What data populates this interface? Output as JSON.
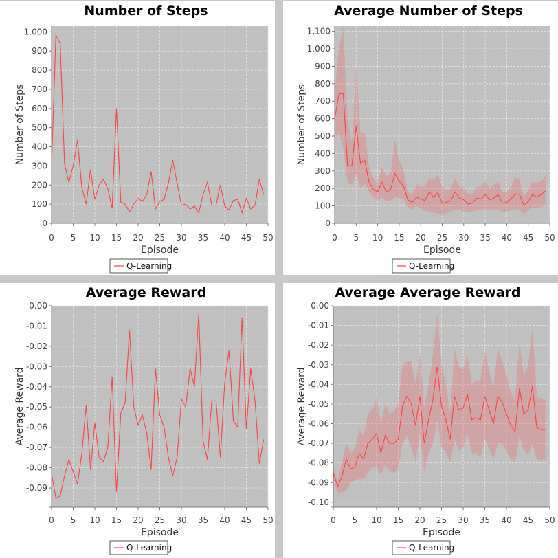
{
  "chart_data": [
    {
      "type": "line",
      "title": "Number of Steps",
      "xlabel": "Episode",
      "ylabel": "Number of Steps",
      "xlim": [
        0,
        50
      ],
      "ylim": [
        0,
        1030
      ],
      "xticks": [
        0,
        5,
        10,
        15,
        20,
        25,
        30,
        35,
        40,
        45,
        50
      ],
      "yticks": [
        0,
        100,
        200,
        300,
        400,
        500,
        600,
        700,
        800,
        900,
        1000
      ],
      "ytick_labels": [
        "0",
        "100",
        "200",
        "300",
        "400",
        "500",
        "600",
        "700",
        "800",
        "900",
        "1,000"
      ],
      "grid": true,
      "legend_position": "bottom-center",
      "series": [
        {
          "name": "Q-Learning",
          "color": "#ff4040",
          "x": [
            0,
            1,
            2,
            3,
            4,
            5,
            6,
            7,
            8,
            9,
            10,
            11,
            12,
            13,
            14,
            15,
            16,
            17,
            18,
            19,
            20,
            21,
            22,
            23,
            24,
            25,
            26,
            27,
            28,
            29,
            30,
            31,
            32,
            33,
            34,
            35,
            36,
            37,
            38,
            39,
            40,
            41,
            42,
            43,
            44,
            45,
            46,
            47,
            48,
            49
          ],
          "values": [
            300,
            980,
            940,
            310,
            215,
            300,
            435,
            185,
            100,
            280,
            125,
            200,
            230,
            180,
            80,
            600,
            110,
            100,
            60,
            100,
            130,
            115,
            150,
            270,
            75,
            115,
            125,
            210,
            330,
            210,
            95,
            100,
            75,
            90,
            55,
            150,
            215,
            95,
            95,
            200,
            90,
            70,
            120,
            125,
            55,
            130,
            75,
            95,
            230,
            150
          ]
        }
      ]
    },
    {
      "type": "line",
      "title": "Average Number of Steps",
      "xlabel": "Episode",
      "ylabel": "Number of Steps",
      "xlim": [
        0,
        50
      ],
      "ylim": [
        0,
        1130
      ],
      "xticks": [
        0,
        5,
        10,
        15,
        20,
        25,
        30,
        35,
        40,
        45,
        50
      ],
      "yticks": [
        0,
        100,
        200,
        300,
        400,
        500,
        600,
        700,
        800,
        900,
        1000,
        1100
      ],
      "ytick_labels": [
        "0",
        "100",
        "200",
        "300",
        "400",
        "500",
        "600",
        "700",
        "800",
        "900",
        "1,000",
        "1,100"
      ],
      "grid": true,
      "legend_position": "bottom-center",
      "series": [
        {
          "name": "Q-Learning",
          "color": "#ff4040",
          "x": [
            0,
            1,
            2,
            3,
            4,
            5,
            6,
            7,
            8,
            9,
            10,
            11,
            12,
            13,
            14,
            15,
            16,
            17,
            18,
            19,
            20,
            21,
            22,
            23,
            24,
            25,
            26,
            27,
            28,
            29,
            30,
            31,
            32,
            33,
            34,
            35,
            36,
            37,
            38,
            39,
            40,
            41,
            42,
            43,
            44,
            45,
            46,
            47,
            48,
            49
          ],
          "values": [
            600,
            740,
            745,
            330,
            330,
            555,
            345,
            360,
            235,
            195,
            180,
            235,
            180,
            195,
            285,
            240,
            215,
            135,
            120,
            150,
            140,
            130,
            180,
            150,
            175,
            115,
            120,
            130,
            180,
            145,
            135,
            110,
            115,
            145,
            140,
            165,
            135,
            145,
            165,
            115,
            120,
            140,
            170,
            165,
            100,
            125,
            165,
            150,
            165,
            185
          ],
          "lower": [
            470,
            520,
            430,
            240,
            220,
            280,
            200,
            230,
            180,
            150,
            130,
            150,
            130,
            130,
            150,
            145,
            140,
            90,
            80,
            100,
            85,
            70,
            70,
            60,
            60,
            45,
            60,
            70,
            75,
            80,
            70,
            65,
            70,
            75,
            80,
            80,
            75,
            80,
            80,
            65,
            70,
            75,
            80,
            80,
            55,
            75,
            90,
            85,
            95,
            100
          ],
          "upper": [
            750,
            1000,
            1130,
            600,
            460,
            910,
            520,
            520,
            320,
            260,
            230,
            320,
            270,
            290,
            480,
            360,
            310,
            180,
            165,
            220,
            210,
            210,
            260,
            250,
            275,
            210,
            190,
            200,
            260,
            210,
            200,
            170,
            170,
            210,
            210,
            240,
            200,
            220,
            240,
            175,
            180,
            210,
            260,
            250,
            150,
            190,
            240,
            230,
            245,
            270
          ]
        }
      ]
    },
    {
      "type": "line",
      "title": "Average Reward",
      "xlabel": "Episode",
      "ylabel": "Average Reward",
      "xlim": [
        0,
        50
      ],
      "ylim": [
        -0.0995,
        0
      ],
      "xticks": [
        0,
        5,
        10,
        15,
        20,
        25,
        30,
        35,
        40,
        45,
        50
      ],
      "yticks": [
        0,
        -0.01,
        -0.02,
        -0.03,
        -0.04,
        -0.05,
        -0.06,
        -0.07,
        -0.08,
        -0.09
      ],
      "ytick_labels": [
        "0.00",
        "-0.01",
        "-0.02",
        "-0.03",
        "-0.04",
        "-0.05",
        "-0.06",
        "-0.07",
        "-0.08",
        "-0.09"
      ],
      "grid": true,
      "legend_position": "bottom-center",
      "series": [
        {
          "name": "Q-Learning",
          "color": "#ff4040",
          "x": [
            0,
            1,
            2,
            3,
            4,
            5,
            6,
            7,
            8,
            9,
            10,
            11,
            12,
            13,
            14,
            15,
            16,
            17,
            18,
            19,
            20,
            21,
            22,
            23,
            24,
            25,
            26,
            27,
            28,
            29,
            30,
            31,
            32,
            33,
            34,
            35,
            36,
            37,
            38,
            39,
            40,
            41,
            42,
            43,
            44,
            45,
            46,
            47,
            48,
            49
          ],
          "values": [
            -0.083,
            -0.095,
            -0.094,
            -0.084,
            -0.076,
            -0.082,
            -0.088,
            -0.073,
            -0.049,
            -0.081,
            -0.058,
            -0.075,
            -0.077,
            -0.07,
            -0.035,
            -0.092,
            -0.053,
            -0.048,
            -0.012,
            -0.05,
            -0.059,
            -0.054,
            -0.063,
            -0.081,
            -0.031,
            -0.054,
            -0.06,
            -0.075,
            -0.084,
            -0.075,
            -0.046,
            -0.05,
            -0.031,
            -0.04,
            -0.004,
            -0.067,
            -0.076,
            -0.047,
            -0.047,
            -0.075,
            -0.038,
            -0.022,
            -0.057,
            -0.06,
            -0.006,
            -0.061,
            -0.031,
            -0.047,
            -0.078,
            -0.066
          ]
        }
      ]
    },
    {
      "type": "line",
      "title": "Average Average Reward",
      "xlabel": "Episode",
      "ylabel": "Average Reward",
      "xlim": [
        0,
        50
      ],
      "ylim": [
        -0.1025,
        0
      ],
      "xticks": [
        0,
        5,
        10,
        15,
        20,
        25,
        30,
        35,
        40,
        45,
        50
      ],
      "yticks": [
        0,
        -0.01,
        -0.02,
        -0.03,
        -0.04,
        -0.05,
        -0.06,
        -0.07,
        -0.08,
        -0.09,
        -0.1
      ],
      "ytick_labels": [
        "0.00",
        "-0.01",
        "-0.02",
        "-0.03",
        "-0.04",
        "-0.05",
        "-0.06",
        "-0.07",
        "-0.08",
        "-0.09",
        "-0.10"
      ],
      "grid": true,
      "legend_position": "bottom-center",
      "series": [
        {
          "name": "Q-Learning",
          "color": "#ff4040",
          "x": [
            0,
            1,
            2,
            3,
            4,
            5,
            6,
            7,
            8,
            9,
            10,
            11,
            12,
            13,
            14,
            15,
            16,
            17,
            18,
            19,
            20,
            21,
            22,
            23,
            24,
            25,
            26,
            27,
            28,
            29,
            30,
            31,
            32,
            33,
            34,
            35,
            36,
            37,
            38,
            39,
            40,
            41,
            42,
            43,
            44,
            45,
            46,
            47,
            48,
            49
          ],
          "values": [
            -0.085,
            -0.092,
            -0.087,
            -0.078,
            -0.083,
            -0.082,
            -0.075,
            -0.078,
            -0.07,
            -0.068,
            -0.065,
            -0.075,
            -0.066,
            -0.07,
            -0.07,
            -0.068,
            -0.051,
            -0.046,
            -0.05,
            -0.061,
            -0.046,
            -0.07,
            -0.058,
            -0.048,
            -0.031,
            -0.051,
            -0.058,
            -0.068,
            -0.046,
            -0.053,
            -0.052,
            -0.045,
            -0.058,
            -0.057,
            -0.058,
            -0.046,
            -0.053,
            -0.06,
            -0.046,
            -0.049,
            -0.055,
            -0.061,
            -0.064,
            -0.042,
            -0.055,
            -0.053,
            -0.041,
            -0.062,
            -0.063,
            -0.063
          ],
          "lower": [
            -0.088,
            -0.095,
            -0.095,
            -0.094,
            -0.09,
            -0.089,
            -0.088,
            -0.088,
            -0.085,
            -0.082,
            -0.082,
            -0.086,
            -0.081,
            -0.084,
            -0.085,
            -0.083,
            -0.07,
            -0.066,
            -0.072,
            -0.079,
            -0.065,
            -0.085,
            -0.075,
            -0.07,
            -0.058,
            -0.072,
            -0.075,
            -0.08,
            -0.068,
            -0.074,
            -0.072,
            -0.065,
            -0.075,
            -0.075,
            -0.077,
            -0.068,
            -0.073,
            -0.078,
            -0.07,
            -0.07,
            -0.074,
            -0.078,
            -0.08,
            -0.066,
            -0.074,
            -0.076,
            -0.07,
            -0.078,
            -0.079,
            -0.078
          ],
          "upper": [
            -0.082,
            -0.089,
            -0.08,
            -0.07,
            -0.075,
            -0.073,
            -0.063,
            -0.066,
            -0.055,
            -0.053,
            -0.047,
            -0.06,
            -0.05,
            -0.055,
            -0.054,
            -0.05,
            -0.03,
            -0.028,
            -0.028,
            -0.04,
            -0.025,
            -0.052,
            -0.04,
            -0.025,
            -0.004,
            -0.03,
            -0.04,
            -0.055,
            -0.022,
            -0.031,
            -0.032,
            -0.025,
            -0.04,
            -0.038,
            -0.038,
            -0.023,
            -0.033,
            -0.042,
            -0.022,
            -0.028,
            -0.035,
            -0.044,
            -0.048,
            -0.018,
            -0.036,
            -0.03,
            -0.011,
            -0.046,
            -0.047,
            -0.048
          ]
        }
      ]
    }
  ]
}
